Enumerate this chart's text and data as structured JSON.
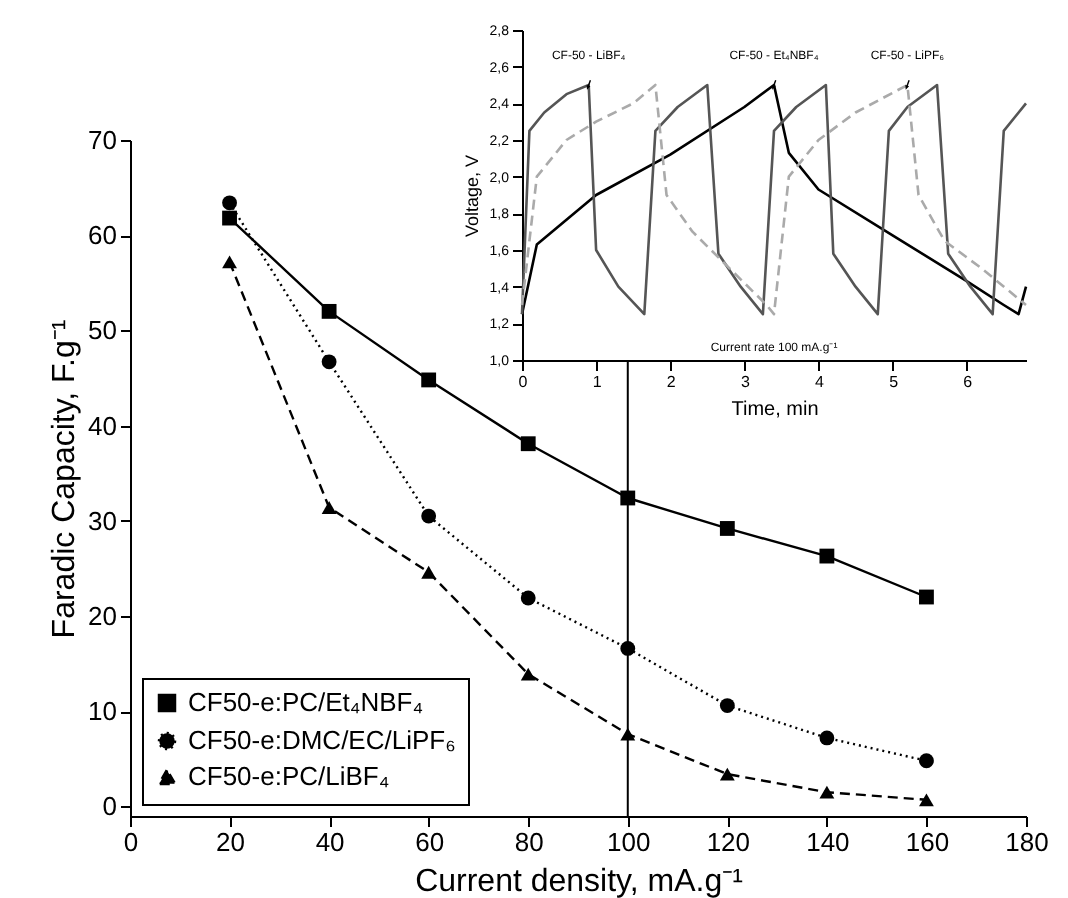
{
  "chart_data": [
    {
      "type": "line",
      "xlabel": "Current density, mA.g⁻¹",
      "ylabel": "Faradic Capacity, F.g⁻¹",
      "x": [
        20,
        40,
        60,
        80,
        100,
        120,
        140,
        160
      ],
      "series": [
        {
          "name": "CF50-e:PC/Et₄NBF₄",
          "color": "#000000",
          "marker": "square",
          "line_style": "solid",
          "values": [
            61.8,
            52,
            44.8,
            38.1,
            32.4,
            29.2,
            26.3,
            22
          ]
        },
        {
          "name": "CF50-e:DMC/EC/LiPF₆",
          "color": "#000000",
          "marker": "circle",
          "line_style": "dotted",
          "values": [
            63.4,
            46.7,
            30.5,
            21.9,
            16.6,
            10.6,
            7.2,
            4.8
          ]
        },
        {
          "name": "CF50-e:PC/LiBF₄",
          "color": "#000000",
          "marker": "triangle",
          "line_style": "dashed",
          "values": [
            57.2,
            31.4,
            24.6,
            13.9,
            7.6,
            3.4,
            1.5,
            0.7
          ]
        }
      ],
      "xlim": [
        0,
        180
      ],
      "xticks": [
        0,
        20,
        40,
        60,
        80,
        100,
        120,
        140,
        160,
        180
      ],
      "ylim": [
        -1,
        70
      ],
      "yticks": [
        0,
        10,
        20,
        30,
        40,
        50,
        60,
        70
      ],
      "ref_lines": [
        {
          "axis": "x",
          "value": 100,
          "color": "#000000"
        }
      ],
      "legend": "bottom left",
      "grid": false
    },
    {
      "type": "line",
      "xlabel": "Time, min",
      "ylabel": "Voltage, V",
      "series": [
        {
          "color": "#000000",
          "line_style": "solid",
          "x": [
            0,
            0.2,
            1,
            2,
            3,
            3.4,
            3.6,
            4,
            5,
            6,
            6.5,
            6.7,
            6.8
          ],
          "values": [
            1.25,
            1.63,
            1.9,
            2.12,
            2.38,
            2.5,
            2.13,
            1.93,
            1.68,
            1.43,
            1.3,
            1.25,
            1.4
          ]
        },
        {
          "color": "#555555",
          "line_style": "solid",
          "x": [
            0,
            0.1,
            0.3,
            0.6,
            0.9,
            1.0,
            1.3,
            1.65,
            1.8,
            2.1,
            2.5,
            2.65,
            2.95,
            3.25,
            3.4,
            3.7,
            4.1,
            4.2,
            4.5,
            4.8,
            4.95,
            5.2,
            5.6,
            5.75,
            6.05,
            6.35,
            6.5,
            6.8
          ],
          "values": [
            1.25,
            2.25,
            2.35,
            2.45,
            2.5,
            1.6,
            1.4,
            1.25,
            2.25,
            2.38,
            2.5,
            1.58,
            1.4,
            1.25,
            2.25,
            2.38,
            2.5,
            1.58,
            1.4,
            1.25,
            2.25,
            2.38,
            2.5,
            1.58,
            1.4,
            1.25,
            2.25,
            2.4
          ]
        },
        {
          "color": "#aaaaaa",
          "line_style": "dashed",
          "x": [
            0,
            0.2,
            0.6,
            1.0,
            1.5,
            1.8,
            1.95,
            2.3,
            2.8,
            3.3,
            3.4,
            3.6,
            4.0,
            4.5,
            5.2,
            5.35,
            5.7,
            6.2,
            6.8
          ],
          "values": [
            1.3,
            2.0,
            2.2,
            2.3,
            2.4,
            2.5,
            1.9,
            1.7,
            1.5,
            1.3,
            1.25,
            2.0,
            2.2,
            2.35,
            2.5,
            1.9,
            1.65,
            1.5,
            1.3
          ]
        }
      ],
      "annotations": [
        {
          "text": "CF-50 - LiBF₄",
          "x": 0.9,
          "y": 2.5
        },
        {
          "text": "CF-50 - Et₄NBF₄",
          "x": 3.4,
          "y": 2.5
        },
        {
          "text": "CF-50 - LiPF₆",
          "x": 5.2,
          "y": 2.5
        },
        "Current rate 100 mA.g⁻¹"
      ],
      "xlim": [
        0,
        6.8
      ],
      "xticks": [
        0,
        1,
        2,
        3,
        4,
        5,
        6
      ],
      "ylim": [
        1.0,
        2.8
      ],
      "yticks": [
        {
          "value": 1.0,
          "label": "1,0"
        },
        {
          "value": 1.2,
          "label": "1,2"
        },
        {
          "value": 1.4,
          "label": "1,4"
        },
        {
          "value": 1.6,
          "label": "1,6"
        },
        {
          "value": 1.8,
          "label": "1,8"
        },
        {
          "value": 2.0,
          "label": "2,0"
        },
        {
          "value": 2.2,
          "label": "2,2"
        },
        {
          "value": 2.4,
          "label": "2,4"
        },
        {
          "value": 2.6,
          "label": "2,6"
        },
        {
          "value": 2.8,
          "label": "2,8"
        }
      ],
      "grid": false
    }
  ]
}
